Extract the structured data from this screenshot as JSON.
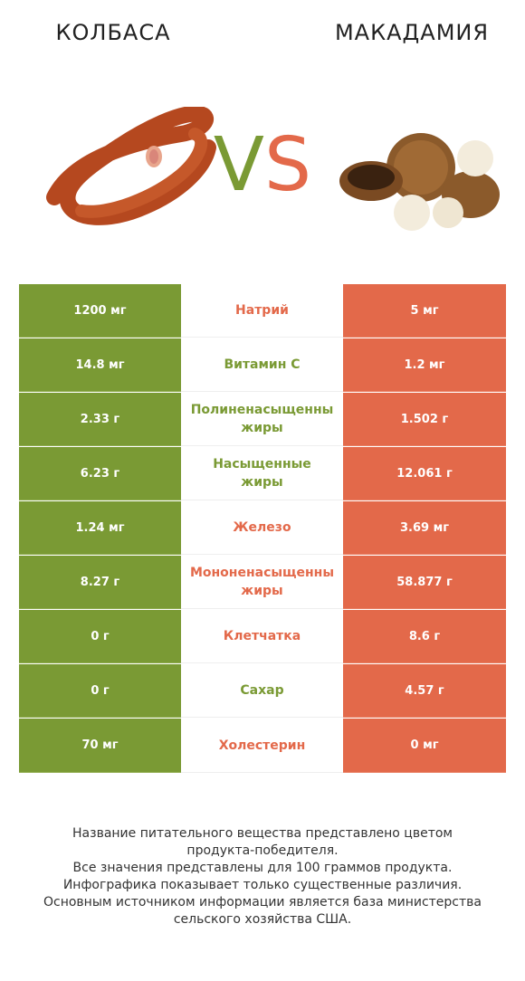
{
  "header": {
    "left_title": "КОЛБАСА",
    "right_title": "МАКАДАМИЯ",
    "vs_v": "V",
    "vs_s": "S"
  },
  "colors": {
    "left": "#7a9a34",
    "right": "#e3694a"
  },
  "rows": [
    {
      "left": "1200 мг",
      "label": "Натрий",
      "label_line2": "",
      "right": "5 мг",
      "winner": "right"
    },
    {
      "left": "14.8 мг",
      "label": "Витамин C",
      "label_line2": "",
      "right": "1.2 мг",
      "winner": "left"
    },
    {
      "left": "2.33 г",
      "label": "Полиненасыщенны",
      "label_line2": "жиры",
      "right": "1.502 г",
      "winner": "left"
    },
    {
      "left": "6.23 г",
      "label": "Насыщенные",
      "label_line2": "жиры",
      "right": "12.061 г",
      "winner": "left"
    },
    {
      "left": "1.24 мг",
      "label": "Железо",
      "label_line2": "",
      "right": "3.69 мг",
      "winner": "right"
    },
    {
      "left": "8.27 г",
      "label": "Мононенасыщенны",
      "label_line2": "жиры",
      "right": "58.877 г",
      "winner": "right"
    },
    {
      "left": "0 г",
      "label": "Клетчатка",
      "label_line2": "",
      "right": "8.6 г",
      "winner": "right"
    },
    {
      "left": "0 г",
      "label": "Сахар",
      "label_line2": "",
      "right": "4.57 г",
      "winner": "left"
    },
    {
      "left": "70 мг",
      "label": "Холестерин",
      "label_line2": "",
      "right": "0 мг",
      "winner": "right"
    }
  ],
  "footer": {
    "line1": "Название питательного вещества представлено цветом",
    "line2": "продукта-победителя.",
    "line3": "Все значения представлены для 100 граммов продукта.",
    "line4": "Инфографика показывает только существенные различия.",
    "line5": "Основным источником информации является база министерства",
    "line6": "сельского хозяйства США."
  }
}
